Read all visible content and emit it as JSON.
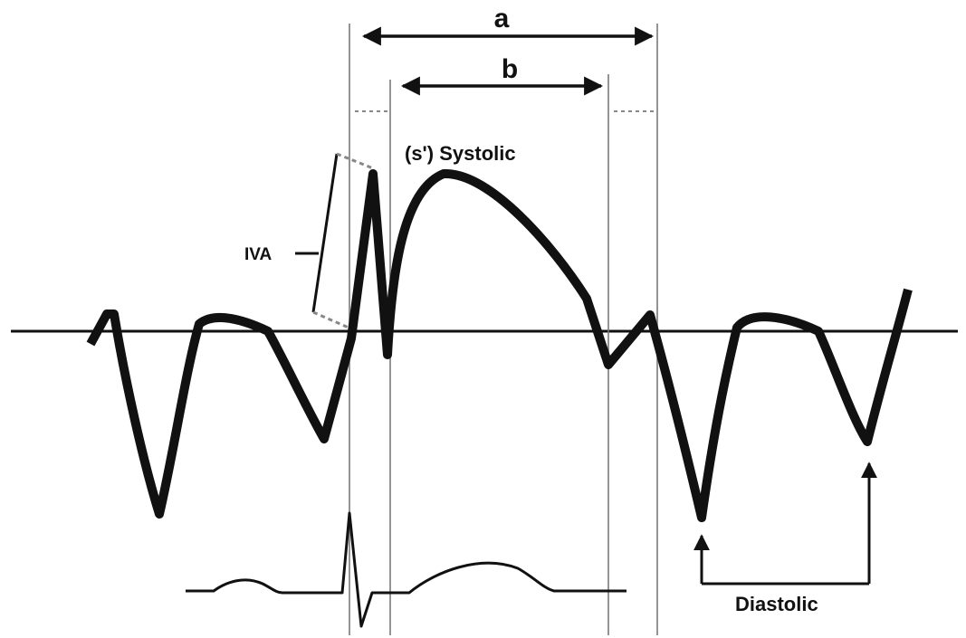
{
  "labels": {
    "interval_a": "a",
    "interval_b": "b",
    "systolic": "(s') Systolic",
    "iva": "IVA",
    "diastolic": "Diastolic"
  },
  "colors": {
    "wave": "#111111",
    "guide": "#7a7a7a",
    "dash": "#888888"
  }
}
